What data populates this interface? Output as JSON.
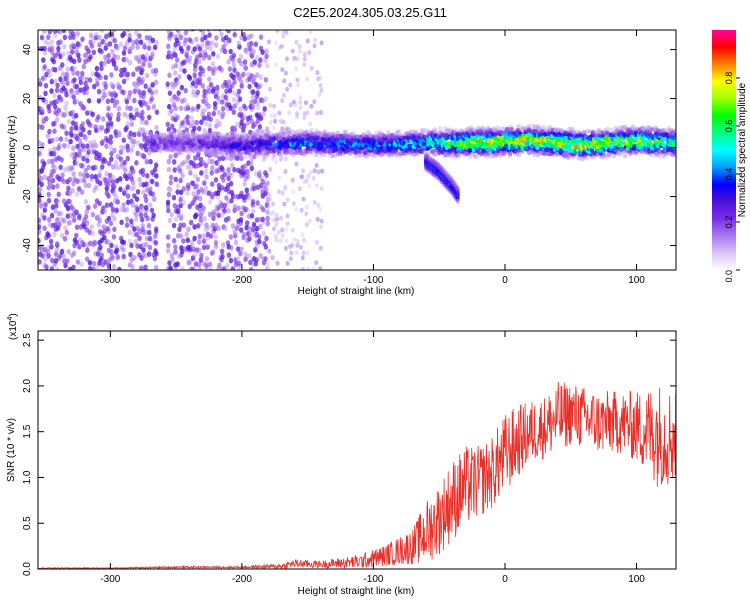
{
  "title": "C2E5.2024.305.03.25.G11",
  "chart_data": [
    {
      "type": "heatmap",
      "xlabel": "Height of straight line (km)",
      "ylabel": "Frequency (Hz)",
      "xlim": [
        -355,
        130
      ],
      "ylim": [
        -50,
        48
      ],
      "x_ticks": [
        -300,
        -200,
        -100,
        0,
        100
      ],
      "y_ticks": [
        -40,
        -20,
        0,
        20,
        40
      ],
      "colorbar": {
        "label": "Normalized spectral amplitude",
        "range": [
          0,
          1
        ],
        "ticks": [
          0.0,
          0.2,
          0.4,
          0.6,
          0.8
        ],
        "tick_labels": [
          "0.0",
          "0.2",
          "0.4",
          "0.6",
          "0.8"
        ],
        "colormap": [
          "#ffffff",
          "#d9c4f5",
          "#a878f0",
          "#7a2ee6",
          "#4b10d8",
          "#0000ff",
          "#00a0ff",
          "#00ffff",
          "#00ff80",
          "#00ff00",
          "#a0ff00",
          "#ffff00",
          "#ff8000",
          "#ff0000",
          "#ff00a0"
        ]
      },
      "ridge": {
        "x": [
          -270,
          -240,
          -200,
          -150,
          -100,
          -60,
          -20,
          20,
          60,
          100,
          125
        ],
        "center_hz": [
          2,
          2,
          1,
          2,
          1,
          2,
          2,
          3,
          1,
          3,
          2
        ],
        "amplitude": [
          0.3,
          0.25,
          0.35,
          0.45,
          0.45,
          0.55,
          0.85,
          0.8,
          0.85,
          0.75,
          0.7
        ]
      },
      "branch": {
        "x": [
          -60,
          -50,
          -40,
          -35
        ],
        "center_hz": [
          -6,
          -10,
          -16,
          -20
        ]
      },
      "noise_region": {
        "x": [
          -355,
          -180
        ],
        "description_amplitude": 0.2
      },
      "sparse_region": {
        "x": [
          -180,
          -140
        ],
        "description_amplitude": 0.1
      }
    },
    {
      "type": "line",
      "xlabel": "Height of straight line (km)",
      "ylabel": "SNR (10 * v/v)",
      "y_scale_label": "(x10",
      "y_scale_exp": "4",
      "y_scale_close": ")",
      "xlim": [
        -355,
        130
      ],
      "ylim": [
        0,
        2.6
      ],
      "x_ticks": [
        -300,
        -200,
        -100,
        0,
        100
      ],
      "y_ticks": [
        0.0,
        0.5,
        1.0,
        1.5,
        2.0,
        2.5
      ],
      "y_tick_labels": [
        "0.0",
        "0.5",
        "1.0",
        "1.5",
        "2.0",
        "2.5"
      ],
      "line_color": "#e8302a",
      "series": [
        {
          "x": [
            -355,
            -300,
            -250,
            -200,
            -170,
            -160,
            -140,
            -110,
            -90,
            -70,
            -60,
            -50,
            -40,
            -30,
            -20,
            -10,
            0,
            10,
            20,
            30,
            40,
            50,
            60,
            70,
            80,
            90,
            100,
            110,
            115,
            120,
            130
          ],
          "mean": [
            0.01,
            0.01,
            0.02,
            0.02,
            0.03,
            0.06,
            0.05,
            0.08,
            0.15,
            0.25,
            0.4,
            0.55,
            0.75,
            0.9,
            0.95,
            1.05,
            1.25,
            1.4,
            1.5,
            1.55,
            1.65,
            1.7,
            1.65,
            1.6,
            1.6,
            1.6,
            1.55,
            1.5,
            1.5,
            1.45,
            1.45
          ],
          "spread": [
            0.005,
            0.005,
            0.01,
            0.01,
            0.03,
            0.05,
            0.04,
            0.08,
            0.12,
            0.2,
            0.35,
            0.4,
            0.45,
            0.45,
            0.4,
            0.4,
            0.45,
            0.4,
            0.35,
            0.35,
            0.4,
            0.35,
            0.35,
            0.35,
            0.35,
            0.35,
            0.4,
            0.5,
            0.6,
            0.55,
            0.55
          ]
        }
      ]
    }
  ]
}
